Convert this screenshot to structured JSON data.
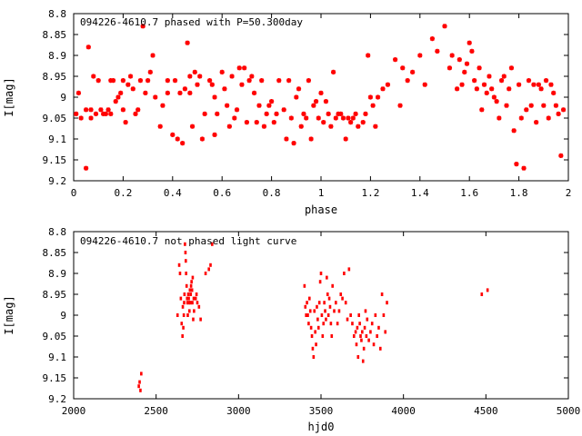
{
  "chart_data": [
    {
      "type": "scatter",
      "title": "094226-4610.7 phased with P=50.300day",
      "xlabel": "phase",
      "ylabel": "I[mag]",
      "xlim": [
        0,
        2
      ],
      "ylim": [
        9.2,
        8.8
      ],
      "y_inverted": true,
      "x_ticks": [
        "0",
        "0.2",
        "0.4",
        "0.6",
        "0.8",
        "1",
        "1.2",
        "1.4",
        "1.6",
        "1.8",
        "2"
      ],
      "y_ticks": [
        "8.8",
        "8.85",
        "8.9",
        "8.95",
        "9",
        "9.05",
        "9.1",
        "9.15",
        "9.2"
      ],
      "marker": "star",
      "color": "#ff0000",
      "points_x": [
        0.01,
        0.02,
        0.03,
        0.05,
        0.05,
        0.06,
        0.07,
        0.07,
        0.08,
        0.09,
        0.1,
        0.11,
        0.12,
        0.13,
        0.14,
        0.15,
        0.15,
        0.16,
        0.17,
        0.18,
        0.19,
        0.2,
        0.2,
        0.21,
        0.22,
        0.23,
        0.24,
        0.25,
        0.26,
        0.27,
        0.28,
        0.29,
        0.3,
        0.31,
        0.32,
        0.33,
        0.35,
        0.36,
        0.38,
        0.38,
        0.4,
        0.41,
        0.42,
        0.43,
        0.44,
        0.45,
        0.46,
        0.47,
        0.47,
        0.48,
        0.49,
        0.5,
        0.51,
        0.52,
        0.53,
        0.55,
        0.56,
        0.57,
        0.57,
        0.58,
        0.6,
        0.61,
        0.62,
        0.63,
        0.64,
        0.65,
        0.66,
        0.67,
        0.68,
        0.69,
        0.7,
        0.71,
        0.72,
        0.73,
        0.74,
        0.75,
        0.76,
        0.77,
        0.78,
        0.79,
        0.8,
        0.81,
        0.82,
        0.83,
        0.85,
        0.86,
        0.87,
        0.88,
        0.89,
        0.9,
        0.91,
        0.92,
        0.93,
        0.94,
        0.95,
        0.96,
        0.97,
        0.98,
        0.99,
        1.0,
        1.01,
        1.02,
        1.03,
        1.04,
        1.05,
        1.06,
        1.07,
        1.08,
        1.09,
        1.1,
        1.11,
        1.12,
        1.13,
        1.14,
        1.15,
        1.17,
        1.18,
        1.19,
        1.2,
        1.21,
        1.22,
        1.23,
        1.25,
        1.27,
        1.3,
        1.32,
        1.33,
        1.35,
        1.37,
        1.4,
        1.42,
        1.45,
        1.47,
        1.5,
        1.52,
        1.53,
        1.55,
        1.56,
        1.57,
        1.58,
        1.59,
        1.6,
        1.61,
        1.62,
        1.63,
        1.64,
        1.65,
        1.66,
        1.67,
        1.68,
        1.69,
        1.7,
        1.71,
        1.72,
        1.73,
        1.74,
        1.75,
        1.76,
        1.77,
        1.78,
        1.79,
        1.8,
        1.81,
        1.82,
        1.83,
        1.84,
        1.85,
        1.86,
        1.87,
        1.88,
        1.89,
        1.9,
        1.91,
        1.92,
        1.93,
        1.94,
        1.95,
        1.96,
        1.97,
        1.98,
        1.99,
        2.0
      ],
      "points_y": [
        9.04,
        8.99,
        9.05,
        9.03,
        9.17,
        8.88,
        9.03,
        9.05,
        8.95,
        9.04,
        8.96,
        9.03,
        9.04,
        9.04,
        9.03,
        8.96,
        9.04,
        8.96,
        9.01,
        9.0,
        8.99,
        9.03,
        8.96,
        9.06,
        8.97,
        8.95,
        8.98,
        9.04,
        9.03,
        8.96,
        8.83,
        8.99,
        8.96,
        8.94,
        8.9,
        9.0,
        9.07,
        9.02,
        8.99,
        8.96,
        9.09,
        8.96,
        9.1,
        8.99,
        9.11,
        8.98,
        8.87,
        8.99,
        8.95,
        9.07,
        8.94,
        8.97,
        8.95,
        9.1,
        9.04,
        8.96,
        8.97,
        9.0,
        9.09,
        9.04,
        8.94,
        8.98,
        9.02,
        9.07,
        8.95,
        9.05,
        9.03,
        8.93,
        8.97,
        8.93,
        9.06,
        8.96,
        8.95,
        8.99,
        9.06,
        9.02,
        8.96,
        9.07,
        9.04,
        9.02,
        9.01,
        9.06,
        9.04,
        8.96,
        9.03,
        9.1,
        8.96,
        9.05,
        9.11,
        9.0,
        8.98,
        9.07,
        9.04,
        9.05,
        8.96,
        9.1,
        9.02,
        9.01,
        9.05,
        8.99,
        9.06,
        9.01,
        9.04,
        9.07,
        8.94,
        9.05,
        9.04,
        9.04,
        9.05,
        9.1,
        9.05,
        9.06,
        9.05,
        9.04,
        9.07,
        9.06,
        9.04,
        8.9,
        9.0,
        9.02,
        9.07,
        9.0,
        8.98,
        8.97,
        8.91,
        9.02,
        8.93,
        8.96,
        8.94,
        8.9,
        8.97,
        8.86,
        8.89,
        8.83,
        8.93,
        8.9,
        8.98,
        8.91,
        8.97,
        8.94,
        8.92,
        8.87,
        8.89,
        8.96,
        8.98,
        8.93,
        9.03,
        8.97,
        8.99,
        8.95,
        8.98,
        9.0,
        9.01,
        9.05,
        8.96,
        8.95,
        9.02,
        8.98,
        8.93,
        9.08,
        9.16,
        8.97,
        9.05,
        9.17,
        9.03,
        8.96,
        9.02,
        8.97,
        9.06,
        8.97,
        8.98,
        9.02,
        8.96,
        9.05,
        8.97,
        8.99,
        9.02,
        9.04,
        9.14,
        9.03
      ]
    },
    {
      "type": "scatter",
      "title": "094226-4610.7 not phased light curve",
      "xlabel": "hjd0",
      "ylabel": "I[mag]",
      "xlim": [
        2000,
        5000
      ],
      "ylim": [
        9.2,
        8.8
      ],
      "y_inverted": true,
      "x_ticks": [
        "2000",
        "2500",
        "3000",
        "3500",
        "4000",
        "4500",
        "5000"
      ],
      "y_ticks": [
        "8.8",
        "8.85",
        "8.9",
        "8.95",
        "9",
        "9.05",
        "9.1",
        "9.15",
        "9.2"
      ],
      "marker": "dot",
      "color": "#ff0000",
      "points_x": [
        2395,
        2400,
        2405,
        2410,
        2630,
        2640,
        2645,
        2650,
        2655,
        2660,
        2662,
        2665,
        2668,
        2670,
        2672,
        2675,
        2678,
        2680,
        2682,
        2685,
        2688,
        2690,
        2692,
        2695,
        2698,
        2700,
        2702,
        2705,
        2708,
        2710,
        2712,
        2715,
        2718,
        2720,
        2722,
        2725,
        2728,
        2730,
        2740,
        2745,
        2750,
        2760,
        2770,
        2800,
        2820,
        2830,
        2840,
        3400,
        3405,
        3410,
        3415,
        3420,
        3425,
        3430,
        3435,
        3440,
        3445,
        3450,
        3455,
        3460,
        3465,
        3470,
        3475,
        3480,
        3485,
        3490,
        3495,
        3500,
        3505,
        3510,
        3515,
        3520,
        3525,
        3530,
        3535,
        3540,
        3545,
        3550,
        3555,
        3560,
        3565,
        3570,
        3580,
        3590,
        3600,
        3610,
        3620,
        3630,
        3640,
        3650,
        3660,
        3670,
        3680,
        3690,
        3700,
        3710,
        3715,
        3720,
        3725,
        3730,
        3735,
        3740,
        3745,
        3750,
        3755,
        3760,
        3765,
        3770,
        3775,
        3780,
        3790,
        3800,
        3810,
        3820,
        3830,
        3840,
        3850,
        3860,
        3870,
        3880,
        3890,
        3900,
        4475,
        4510
      ],
      "points_y": [
        9.17,
        9.16,
        9.18,
        9.14,
        9.0,
        8.88,
        8.9,
        8.96,
        9.02,
        9.05,
        8.98,
        9.03,
        9.0,
        8.97,
        8.95,
        8.83,
        8.85,
        8.87,
        8.9,
        8.93,
        8.96,
        8.97,
        9.0,
        8.95,
        8.96,
        8.97,
        8.99,
        8.94,
        8.97,
        8.95,
        8.93,
        8.92,
        8.94,
        8.97,
        8.91,
        9.01,
        8.96,
        8.99,
        8.96,
        8.95,
        8.97,
        8.98,
        9.01,
        8.9,
        8.89,
        8.88,
        8.83,
        8.93,
        8.98,
        9.0,
        8.97,
        9.0,
        9.02,
        8.96,
        8.99,
        9.03,
        9.05,
        9.08,
        9.1,
        8.99,
        9.04,
        9.07,
        8.98,
        9.01,
        9.03,
        8.97,
        8.92,
        8.9,
        9.0,
        9.05,
        9.02,
        8.97,
        8.99,
        9.01,
        8.91,
        8.95,
        9.0,
        8.96,
        8.98,
        9.02,
        9.05,
        8.93,
        8.99,
        8.97,
        9.02,
        8.99,
        8.95,
        8.96,
        8.9,
        8.97,
        9.01,
        8.89,
        9.0,
        9.02,
        9.05,
        9.04,
        9.07,
        9.03,
        9.1,
        9.0,
        9.02,
        9.05,
        9.06,
        9.04,
        9.11,
        9.08,
        9.03,
        8.99,
        9.05,
        9.01,
        9.06,
        9.04,
        9.02,
        9.07,
        9.0,
        9.05,
        9.03,
        9.08,
        8.95,
        9.0,
        9.04,
        8.97,
        8.95,
        8.94,
        9.02
      ]
    }
  ]
}
